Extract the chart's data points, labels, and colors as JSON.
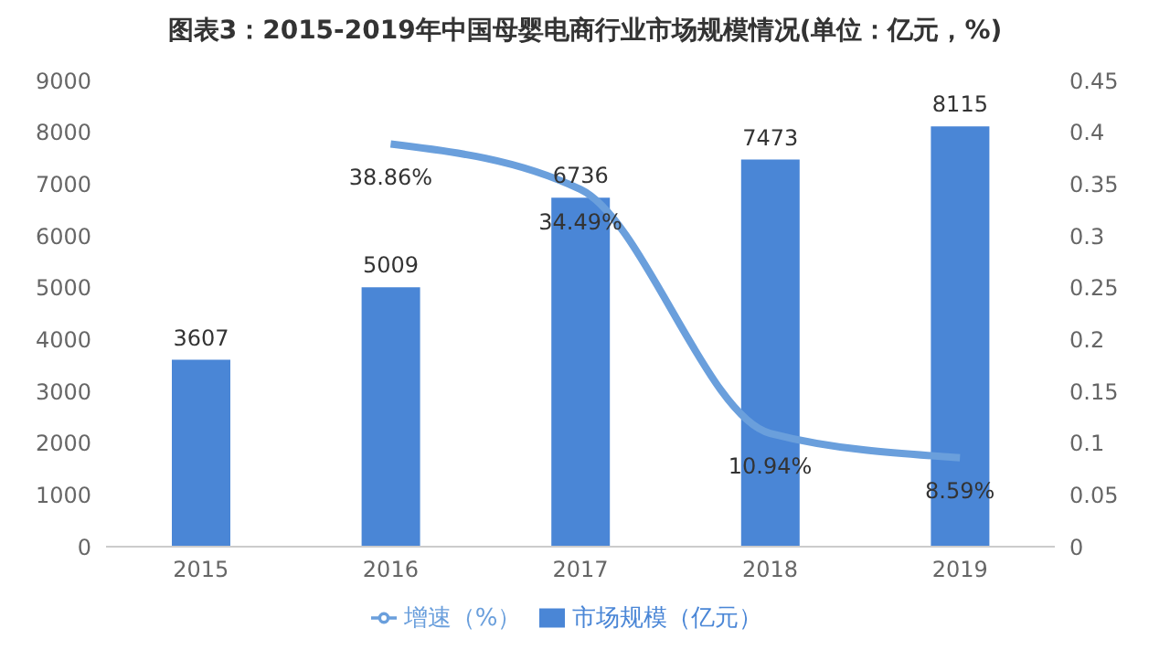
{
  "chart_data": {
    "type": "bar",
    "title": "图表3：2015-2019年中国母婴电商行业市场规模情况(单位：亿元，%)",
    "categories": [
      "2015",
      "2016",
      "2017",
      "2018",
      "2019"
    ],
    "series": [
      {
        "name": "市场规模（亿元）",
        "color": "#4a86d6",
        "values": [
          3607,
          5009,
          6736,
          7473,
          8115
        ],
        "value_labels": [
          "3607",
          "5009",
          "6736",
          "7473",
          "8115"
        ]
      },
      {
        "name": "增速（%）",
        "type": "line",
        "axis": "y2",
        "color": "#6a9fdc",
        "values": [
          null,
          0.3886,
          0.3449,
          0.1094,
          0.0859
        ],
        "value_labels": [
          null,
          "38.86%",
          "34.49%",
          "10.94%",
          "8.59%"
        ]
      }
    ],
    "ylim": [
      0,
      9000
    ],
    "yticks": [
      0,
      1000,
      2000,
      3000,
      4000,
      5000,
      6000,
      7000,
      8000,
      9000
    ],
    "y2lim": [
      0,
      0.45
    ],
    "y2ticks": [
      0,
      0.05,
      0.1,
      0.15,
      0.2,
      0.25,
      0.3,
      0.35,
      0.4,
      0.45
    ],
    "grid": false,
    "legend": "bottom",
    "marker": "none",
    "line_style": "solid"
  }
}
